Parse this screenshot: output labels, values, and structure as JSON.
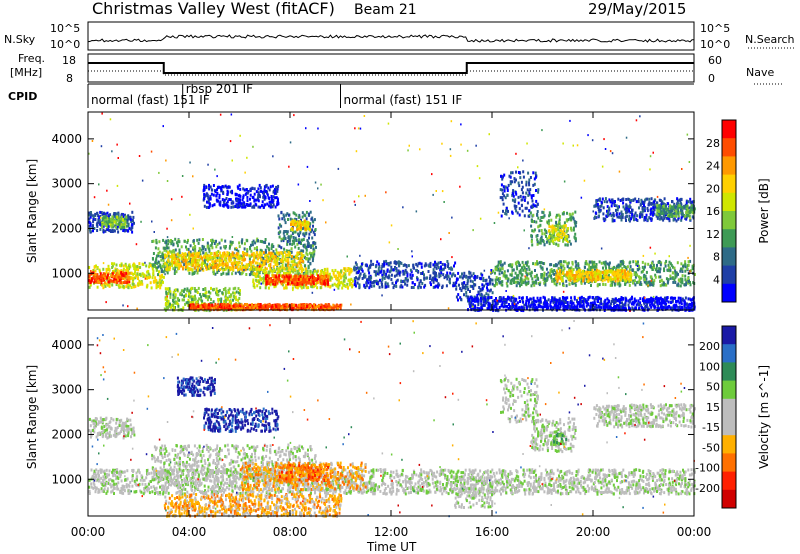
{
  "header": {
    "station": "Christmas Valley West (fitACF)",
    "beam": "Beam 21",
    "date": "29/May/2015"
  },
  "top_panel": {
    "nsky_label": "N.Sky",
    "nsky_ticks": [
      "10^5",
      "10^0"
    ],
    "nsearch_label": "N.Search",
    "nsearch_ticks": [
      "10^5",
      "10^0"
    ],
    "freq_label": "Freq.",
    "freq_unit": "[MHz]",
    "freq_ticks": [
      "18",
      "8"
    ],
    "nave_label": "Nave",
    "nave_ticks": [
      "60",
      "0"
    ],
    "cpid_label": "CPID",
    "cpid_segments": [
      {
        "label": "normal (fast) 151 IF",
        "start_h": 0,
        "end_h": 3.75
      },
      {
        "label": "rbsp 201 IF",
        "start_h": 3.75,
        "end_h": 10
      },
      {
        "label": "normal (fast) 151 IF",
        "start_h": 10,
        "end_h": 24
      }
    ]
  },
  "chart_data": [
    {
      "type": "heatmap",
      "name": "power-panel",
      "ylabel": "Slant Range [km]",
      "xlim_hours": [
        0,
        24
      ],
      "ylim_km": [
        180,
        4600
      ],
      "yticks": [
        "1000",
        "2000",
        "3000",
        "4000"
      ],
      "colorbar": {
        "label": "Power [dB]",
        "ticks": [
          "28",
          "24",
          "20",
          "16",
          "12",
          "8",
          "4"
        ],
        "colors": [
          "#ff0000",
          "#ff4d00",
          "#ff9900",
          "#ffd000",
          "#cfe600",
          "#7fc93a",
          "#3e9a55",
          "#2e6b87",
          "#1f3fa6",
          "#0000ff"
        ]
      },
      "bands": [
        {
          "t0": 0.0,
          "t1": 3.0,
          "r0": 700,
          "r1": 1250,
          "c": 4
        },
        {
          "t0": 0.0,
          "t1": 1.6,
          "r0": 820,
          "r1": 1050,
          "c": 1
        },
        {
          "t0": 0.0,
          "t1": 1.8,
          "r0": 1950,
          "r1": 2400,
          "c": 8
        },
        {
          "t0": 0.5,
          "t1": 1.5,
          "r0": 2050,
          "r1": 2300,
          "c": 5
        },
        {
          "t0": 2.5,
          "t1": 9.0,
          "r0": 1000,
          "r1": 1800,
          "c": 6
        },
        {
          "t0": 3.0,
          "t1": 8.5,
          "r0": 1100,
          "r1": 1500,
          "c": 3
        },
        {
          "t0": 3.0,
          "t1": 6.0,
          "r0": 200,
          "r1": 700,
          "c": 5
        },
        {
          "t0": 4.0,
          "t1": 10.0,
          "r0": 220,
          "r1": 340,
          "c": 1
        },
        {
          "t0": 6.5,
          "t1": 10.5,
          "r0": 700,
          "r1": 1150,
          "c": 4
        },
        {
          "t0": 7.0,
          "t1": 9.5,
          "r0": 780,
          "r1": 980,
          "c": 1
        },
        {
          "t0": 7.5,
          "t1": 9.0,
          "r0": 1600,
          "r1": 2400,
          "c": 7
        },
        {
          "t0": 8.0,
          "t1": 8.8,
          "r0": 2000,
          "r1": 2200,
          "c": 3
        },
        {
          "t0": 4.5,
          "t1": 7.5,
          "r0": 2500,
          "r1": 3000,
          "c": 9
        },
        {
          "t0": 10.5,
          "t1": 14.5,
          "r0": 700,
          "r1": 1300,
          "c": 8
        },
        {
          "t0": 14.5,
          "t1": 16.0,
          "r0": 400,
          "r1": 1100,
          "c": 8
        },
        {
          "t0": 16.0,
          "t1": 24.0,
          "r0": 750,
          "r1": 1300,
          "c": 6
        },
        {
          "t0": 18.5,
          "t1": 21.5,
          "r0": 850,
          "r1": 1100,
          "c": 3
        },
        {
          "t0": 16.3,
          "t1": 17.8,
          "r0": 2300,
          "r1": 3300,
          "c": 8
        },
        {
          "t0": 17.5,
          "t1": 19.3,
          "r0": 1650,
          "r1": 2400,
          "c": 6
        },
        {
          "t0": 18.2,
          "t1": 19.0,
          "r0": 1750,
          "r1": 2100,
          "c": 4
        },
        {
          "t0": 20.0,
          "t1": 24.0,
          "r0": 2200,
          "r1": 2700,
          "c": 8
        },
        {
          "t0": 22.5,
          "t1": 24.0,
          "r0": 2300,
          "r1": 2550,
          "c": 6
        },
        {
          "t0": 15.0,
          "t1": 24.0,
          "r0": 200,
          "r1": 500,
          "c": 9
        }
      ]
    },
    {
      "type": "heatmap",
      "name": "velocity-panel",
      "ylabel": "Slant Range [km]",
      "xlabel": "Time UT",
      "xlim_hours": [
        0,
        24
      ],
      "ylim_km": [
        180,
        4600
      ],
      "yticks": [
        "1000",
        "2000",
        "3000",
        "4000"
      ],
      "xticks": [
        "00:00",
        "04:00",
        "08:00",
        "12:00",
        "16:00",
        "20:00",
        "00:00"
      ],
      "colorbar": {
        "label": "Velocity [m s^-1]",
        "ticks": [
          "200",
          "100",
          "50",
          "15",
          "-15",
          "-50",
          "-100",
          "-200"
        ],
        "colors": [
          "#1a1aa6",
          "#2a6fc7",
          "#2e8b57",
          "#6ecb3c",
          "#bdbdbd",
          "#bdbdbd",
          "#ffb000",
          "#ff7000",
          "#ff2000",
          "#d00000"
        ]
      },
      "bands": [
        {
          "t0": 0.0,
          "t1": 24.0,
          "r0": 700,
          "r1": 1250,
          "c": 4
        },
        {
          "t0": 0.0,
          "t1": 1.8,
          "r0": 1950,
          "r1": 2400,
          "c": 4
        },
        {
          "t0": 2.5,
          "t1": 9.0,
          "r0": 1000,
          "r1": 1800,
          "c": 4
        },
        {
          "t0": 6.0,
          "t1": 11.0,
          "r0": 800,
          "r1": 1400,
          "c": 6
        },
        {
          "t0": 7.5,
          "t1": 9.5,
          "r0": 1000,
          "r1": 1350,
          "c": 7
        },
        {
          "t0": 4.5,
          "t1": 7.5,
          "r0": 2100,
          "r1": 2600,
          "c": 0
        },
        {
          "t0": 3.0,
          "t1": 10.0,
          "r0": 200,
          "r1": 700,
          "c": 6
        },
        {
          "t0": 16.3,
          "t1": 17.8,
          "r0": 2300,
          "r1": 3300,
          "c": 4
        },
        {
          "t0": 17.5,
          "t1": 19.3,
          "r0": 1650,
          "r1": 2400,
          "c": 4
        },
        {
          "t0": 18.3,
          "t1": 18.9,
          "r0": 1800,
          "r1": 2050,
          "c": 3
        },
        {
          "t0": 20.0,
          "t1": 24.0,
          "r0": 2200,
          "r1": 2700,
          "c": 4
        },
        {
          "t0": 14.5,
          "t1": 16.0,
          "r0": 400,
          "r1": 1100,
          "c": 4
        },
        {
          "t0": 3.5,
          "t1": 5.0,
          "r0": 2900,
          "r1": 3300,
          "c": 0
        }
      ]
    }
  ]
}
